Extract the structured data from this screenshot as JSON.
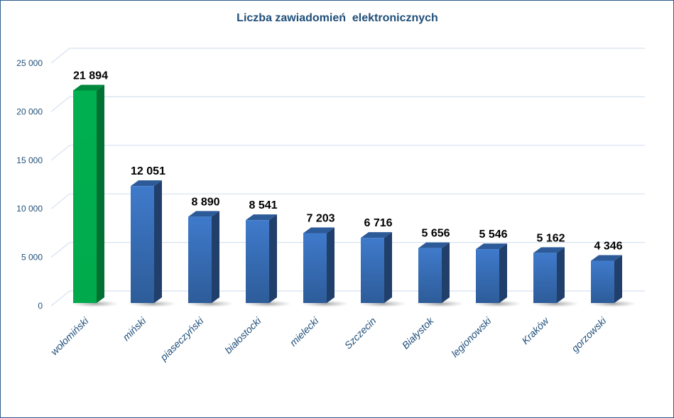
{
  "chart_data": {
    "type": "bar",
    "title": "Liczba zawiadomień  elektronicznych",
    "xlabel": "",
    "ylabel": "",
    "ylim": [
      0,
      25000
    ],
    "yticks": [
      0,
      5000,
      10000,
      15000,
      20000,
      25000
    ],
    "ytick_labels": [
      "0",
      "5 000",
      "10 000",
      "15 000",
      "20 000",
      "25 000"
    ],
    "grid": true,
    "legend": "none",
    "categories": [
      "wołomiński",
      "miński",
      "piaseczyński",
      "białostocki",
      "mielecki",
      "Szczecin",
      "Białystok",
      "legionowski",
      "Kraków",
      "gorzowski"
    ],
    "values": [
      21894,
      12051,
      8890,
      8541,
      7203,
      6716,
      5656,
      5546,
      5162,
      4346
    ],
    "data_labels": [
      "21 894",
      "12 051",
      "8 890",
      "8 541",
      "7 203",
      "6 716",
      "5 656",
      "5 546",
      "5 162",
      "4 346"
    ],
    "colors": {
      "highlight": "#00B050",
      "bar": "#3A6FB8",
      "text": "#1F4E79",
      "grid": "#D6E1F0"
    },
    "highlight_index": 0
  }
}
